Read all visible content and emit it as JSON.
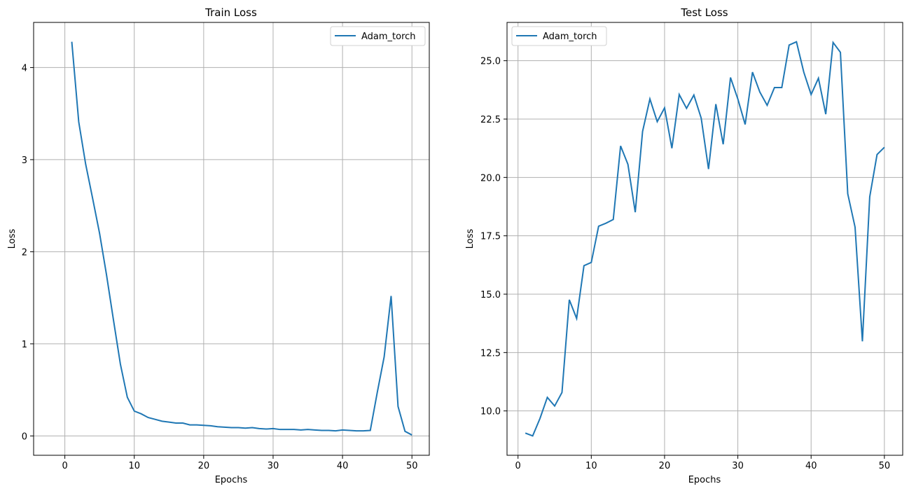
{
  "chart_data": [
    {
      "type": "line",
      "title": "Train Loss",
      "xlabel": "Epochs",
      "ylabel": "Loss",
      "xlim": [
        -4.5,
        52.5
      ],
      "ylim": [
        -0.21,
        4.49
      ],
      "xticks": [
        0,
        10,
        20,
        30,
        40,
        50
      ],
      "xtick_labels": [
        "0",
        "10",
        "20",
        "30",
        "40",
        "50"
      ],
      "yticks": [
        0,
        1,
        2,
        3,
        4
      ],
      "ytick_labels": [
        "0",
        "1",
        "2",
        "3",
        "4"
      ],
      "grid": true,
      "legend_position": "top-right",
      "line_color": "#1f77b4",
      "series": [
        {
          "name": "Adam_torch",
          "x": [
            1,
            2,
            3,
            4,
            5,
            6,
            7,
            8,
            9,
            10,
            11,
            12,
            13,
            14,
            15,
            16,
            17,
            18,
            19,
            20,
            21,
            22,
            23,
            24,
            25,
            26,
            27,
            28,
            29,
            30,
            31,
            32,
            33,
            34,
            35,
            36,
            37,
            38,
            39,
            40,
            41,
            42,
            43,
            44,
            45,
            46,
            47,
            48,
            49,
            50
          ],
          "values": [
            4.28,
            3.41,
            2.95,
            2.58,
            2.2,
            1.75,
            1.26,
            0.78,
            0.42,
            0.27,
            0.24,
            0.2,
            0.18,
            0.16,
            0.15,
            0.14,
            0.14,
            0.12,
            0.12,
            0.115,
            0.11,
            0.1,
            0.095,
            0.09,
            0.09,
            0.085,
            0.09,
            0.08,
            0.075,
            0.08,
            0.07,
            0.07,
            0.07,
            0.065,
            0.07,
            0.065,
            0.06,
            0.06,
            0.055,
            0.065,
            0.06,
            0.055,
            0.055,
            0.06,
            0.47,
            0.86,
            1.52,
            0.32,
            0.05,
            0.01
          ]
        }
      ]
    },
    {
      "type": "line",
      "title": "Test Loss",
      "xlabel": "Epochs",
      "ylabel": "Loss",
      "xlim": [
        -1.5,
        52.5
      ],
      "ylim": [
        8.1,
        26.64
      ],
      "xticks": [
        0,
        10,
        20,
        30,
        40,
        50
      ],
      "xtick_labels": [
        "0",
        "10",
        "20",
        "30",
        "40",
        "50"
      ],
      "yticks": [
        10.0,
        12.5,
        15.0,
        17.5,
        20.0,
        22.5,
        25.0
      ],
      "ytick_labels": [
        "10.0",
        "12.5",
        "15.0",
        "17.5",
        "20.0",
        "22.5",
        "25.0"
      ],
      "grid": true,
      "legend_position": "top-left",
      "line_color": "#1f77b4",
      "series": [
        {
          "name": "Adam_torch",
          "x": [
            1,
            2,
            3,
            4,
            5,
            6,
            7,
            8,
            9,
            10,
            11,
            12,
            13,
            14,
            15,
            16,
            17,
            18,
            19,
            20,
            21,
            22,
            23,
            24,
            25,
            26,
            27,
            28,
            29,
            30,
            31,
            32,
            33,
            34,
            35,
            36,
            37,
            38,
            39,
            40,
            41,
            42,
            43,
            44,
            45,
            46,
            47,
            48,
            49,
            50
          ],
          "values": [
            9.05,
            8.93,
            9.68,
            10.58,
            10.21,
            10.79,
            14.76,
            13.96,
            16.22,
            16.36,
            17.91,
            18.04,
            18.2,
            21.35,
            20.56,
            18.51,
            21.97,
            23.36,
            22.39,
            22.98,
            21.25,
            23.55,
            22.96,
            23.53,
            22.54,
            20.36,
            23.14,
            21.42,
            24.28,
            23.36,
            22.27,
            24.51,
            23.66,
            23.09,
            23.85,
            23.85,
            25.67,
            25.81,
            24.51,
            23.55,
            24.25,
            22.71,
            25.78,
            25.36,
            19.3,
            17.87,
            12.98,
            19.17,
            20.98,
            21.29
          ]
        }
      ]
    }
  ]
}
